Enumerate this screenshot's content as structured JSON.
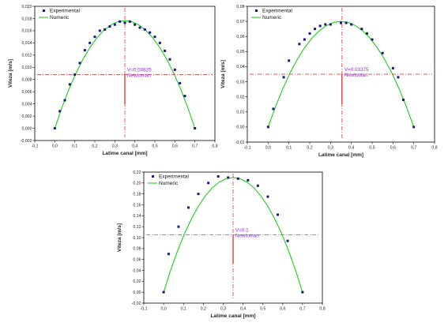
{
  "chart_data": [
    {
      "type": "scatter",
      "xlabel": "Latime canal [mm]",
      "ylabel": "Viteza [m/s]",
      "xlim": [
        -0.1,
        0.8
      ],
      "ylim": [
        -0.002,
        0.02
      ],
      "xticks": [
        "-0,1",
        "0,0",
        "0,1",
        "0,2",
        "0,3",
        "0,4",
        "0,5",
        "0,6",
        "0,7",
        "0,8"
      ],
      "yticks": [
        "-0,002",
        "0,000",
        "0,002",
        "0,004",
        "0,006",
        "0,008",
        "0,010",
        "0,012",
        "0,014",
        "0,016",
        "0,018",
        "0,020"
      ],
      "legend": [
        "Experimental",
        "Numeric"
      ],
      "legend_position": "top-left",
      "annotation": [
        "V=0.00825",
        "Newtonian"
      ],
      "series": [
        {
          "name": "Experimental",
          "x": [
            0.0,
            0.025,
            0.05,
            0.075,
            0.1,
            0.125,
            0.15,
            0.175,
            0.2,
            0.225,
            0.25,
            0.275,
            0.3,
            0.325,
            0.35,
            0.375,
            0.4,
            0.425,
            0.45,
            0.475,
            0.5,
            0.525,
            0.55,
            0.575,
            0.6,
            0.625,
            0.65,
            0.7
          ],
          "y": [
            0.0,
            0.0028,
            0.0046,
            0.0072,
            0.0088,
            0.0107,
            0.0128,
            0.014,
            0.015,
            0.016,
            0.0162,
            0.0167,
            0.017,
            0.0175,
            0.0173,
            0.0175,
            0.017,
            0.0165,
            0.0162,
            0.0157,
            0.015,
            0.014,
            0.0127,
            0.0113,
            0.0096,
            0.0074,
            0.0053,
            0.0
          ]
        },
        {
          "name": "Numeric",
          "x": [
            0.0,
            0.035,
            0.07,
            0.105,
            0.14,
            0.175,
            0.21,
            0.245,
            0.28,
            0.315,
            0.35,
            0.385,
            0.42,
            0.455,
            0.49,
            0.525,
            0.56,
            0.595,
            0.63,
            0.665,
            0.7
          ],
          "y": [
            0.0,
            0.00335,
            0.00635,
            0.00899,
            0.01128,
            0.01323,
            0.01482,
            0.01605,
            0.01694,
            0.01747,
            0.01765,
            0.01747,
            0.01694,
            0.01605,
            0.01482,
            0.01323,
            0.01128,
            0.00899,
            0.00635,
            0.00335,
            0.0
          ]
        }
      ]
    },
    {
      "type": "scatter",
      "xlabel": "Latime canal [mm]",
      "ylabel": "Viteza [m/s]",
      "xlim": [
        -0.1,
        0.8
      ],
      "ylim": [
        -0.01,
        0.08
      ],
      "xticks": [
        "-0,1",
        "0,0",
        "0,1",
        "0,2",
        "0,3",
        "0,4",
        "0,5",
        "0,6",
        "0,7",
        "0,8"
      ],
      "yticks": [
        "-0,01",
        "0,00",
        "0,01",
        "0,02",
        "0,03",
        "0,04",
        "0,05",
        "0,06",
        "0,07",
        "0,08"
      ],
      "legend": [
        "Experimental",
        "Numeric"
      ],
      "legend_position": "top-left",
      "annotation": [
        "V=0.03375",
        "Newtonian"
      ],
      "series": [
        {
          "name": "Experimental",
          "x": [
            0.0,
            0.025,
            0.075,
            0.1,
            0.15,
            0.175,
            0.2,
            0.225,
            0.25,
            0.275,
            0.3,
            0.35,
            0.375,
            0.4,
            0.45,
            0.475,
            0.5,
            0.55,
            0.6,
            0.625,
            0.65,
            0.7
          ],
          "y": [
            0.0,
            0.012,
            0.033,
            0.044,
            0.055,
            0.058,
            0.062,
            0.065,
            0.067,
            0.068,
            0.068,
            0.069,
            0.069,
            0.068,
            0.065,
            0.062,
            0.058,
            0.049,
            0.039,
            0.033,
            0.018,
            0.0
          ]
        },
        {
          "name": "Numeric",
          "x": [
            0.0,
            0.035,
            0.07,
            0.105,
            0.14,
            0.175,
            0.21,
            0.245,
            0.28,
            0.315,
            0.35,
            0.385,
            0.42,
            0.455,
            0.49,
            0.525,
            0.56,
            0.595,
            0.63,
            0.665,
            0.7
          ],
          "y": [
            0.0,
            0.0133,
            0.0252,
            0.0357,
            0.0448,
            0.0525,
            0.0588,
            0.0637,
            0.0672,
            0.0693,
            0.07,
            0.0693,
            0.0672,
            0.0637,
            0.0588,
            0.0525,
            0.0448,
            0.0357,
            0.0252,
            0.0133,
            0.0
          ]
        }
      ]
    },
    {
      "type": "scatter",
      "xlabel": "Latime canal [mm]",
      "ylabel": "Viteza [m/s]",
      "xlim": [
        -0.1,
        0.8
      ],
      "ylim": [
        -0.02,
        0.22
      ],
      "xticks": [
        "-0,1",
        "0,0",
        "0,1",
        "0,2",
        "0,3",
        "0,4",
        "0,5",
        "0,6",
        "0,7",
        "0,8"
      ],
      "yticks": [
        "-0,02",
        "0,00",
        "0,02",
        "0,04",
        "0,06",
        "0,08",
        "0,10",
        "0,12",
        "0,14",
        "0,16",
        "0,18",
        "0,20",
        "0,22"
      ],
      "legend": [
        "Experimental",
        "Numeric"
      ],
      "legend_position": "top-left",
      "annotation": [
        "V=0.1",
        "Newtonian"
      ],
      "series": [
        {
          "name": "Experimental",
          "x": [
            0.0,
            0.025,
            0.075,
            0.125,
            0.175,
            0.225,
            0.275,
            0.325,
            0.375,
            0.425,
            0.475,
            0.525,
            0.575,
            0.625,
            0.7
          ],
          "y": [
            0.0,
            0.07,
            0.12,
            0.155,
            0.18,
            0.2,
            0.212,
            0.21,
            0.208,
            0.205,
            0.195,
            0.175,
            0.142,
            0.094,
            0.0
          ]
        },
        {
          "name": "Numeric",
          "x": [
            0.0,
            0.035,
            0.07,
            0.105,
            0.14,
            0.175,
            0.21,
            0.245,
            0.28,
            0.315,
            0.35,
            0.385,
            0.42,
            0.455,
            0.49,
            0.525,
            0.56,
            0.595,
            0.63,
            0.665,
            0.7
          ],
          "y": [
            0.0,
            0.0399,
            0.0756,
            0.1071,
            0.1344,
            0.1575,
            0.1764,
            0.1911,
            0.2016,
            0.2079,
            0.21,
            0.2079,
            0.2016,
            0.1911,
            0.1764,
            0.1575,
            0.1344,
            0.1071,
            0.0756,
            0.0399,
            0.0
          ]
        }
      ]
    }
  ],
  "colors": {
    "experimental": "#1a1a7a",
    "numeric": "#22cc22",
    "crosshair": "#d62020",
    "annotation": "#8a2be2"
  }
}
